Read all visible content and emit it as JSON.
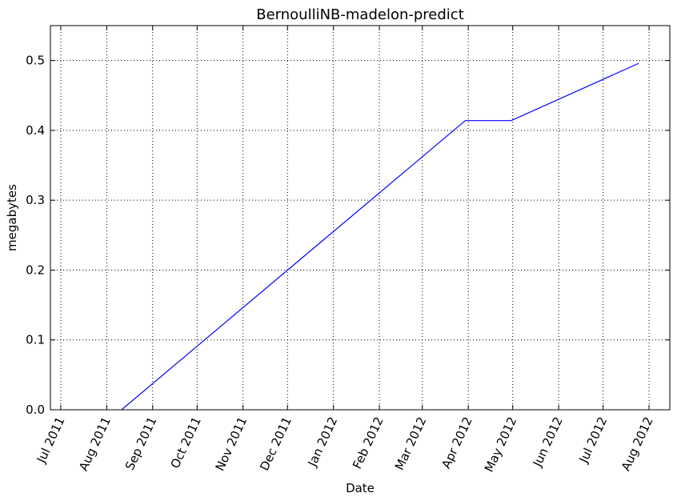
{
  "chart_data": {
    "type": "line",
    "title": "BernoulliNB-madelon-predict",
    "xlabel": "Date",
    "ylabel": "megabytes",
    "x_axis_type": "date",
    "xlim": [
      "2011-06-24",
      "2012-08-15"
    ],
    "ylim": [
      0,
      0.55
    ],
    "grid": true,
    "x_ticks": [
      {
        "date": "2011-07-01",
        "label": "Jul 2011"
      },
      {
        "date": "2011-08-01",
        "label": "Aug 2011"
      },
      {
        "date": "2011-09-01",
        "label": "Sep 2011"
      },
      {
        "date": "2011-10-01",
        "label": "Oct 2011"
      },
      {
        "date": "2011-11-01",
        "label": "Nov 2011"
      },
      {
        "date": "2011-12-01",
        "label": "Dec 2011"
      },
      {
        "date": "2012-01-01",
        "label": "Jan 2012"
      },
      {
        "date": "2012-02-01",
        "label": "Feb 2012"
      },
      {
        "date": "2012-03-01",
        "label": "Mar 2012"
      },
      {
        "date": "2012-04-01",
        "label": "Apr 2012"
      },
      {
        "date": "2012-05-01",
        "label": "May 2012"
      },
      {
        "date": "2012-06-01",
        "label": "Jun 2012"
      },
      {
        "date": "2012-07-01",
        "label": "Jul 2012"
      },
      {
        "date": "2012-08-01",
        "label": "Aug 2012"
      }
    ],
    "y_ticks": [
      {
        "value": 0.0,
        "label": "0.0"
      },
      {
        "value": 0.1,
        "label": "0.1"
      },
      {
        "value": 0.2,
        "label": "0.2"
      },
      {
        "value": 0.3,
        "label": "0.3"
      },
      {
        "value": 0.4,
        "label": "0.4"
      },
      {
        "value": 0.5,
        "label": "0.5"
      }
    ],
    "series": [
      {
        "color": "#0000ff",
        "points": [
          {
            "x": "2011-08-11",
            "y": 0.0
          },
          {
            "x": "2012-03-30",
            "y": 0.414
          },
          {
            "x": "2012-04-30",
            "y": 0.414
          },
          {
            "x": "2012-07-25",
            "y": 0.496
          }
        ]
      }
    ]
  }
}
